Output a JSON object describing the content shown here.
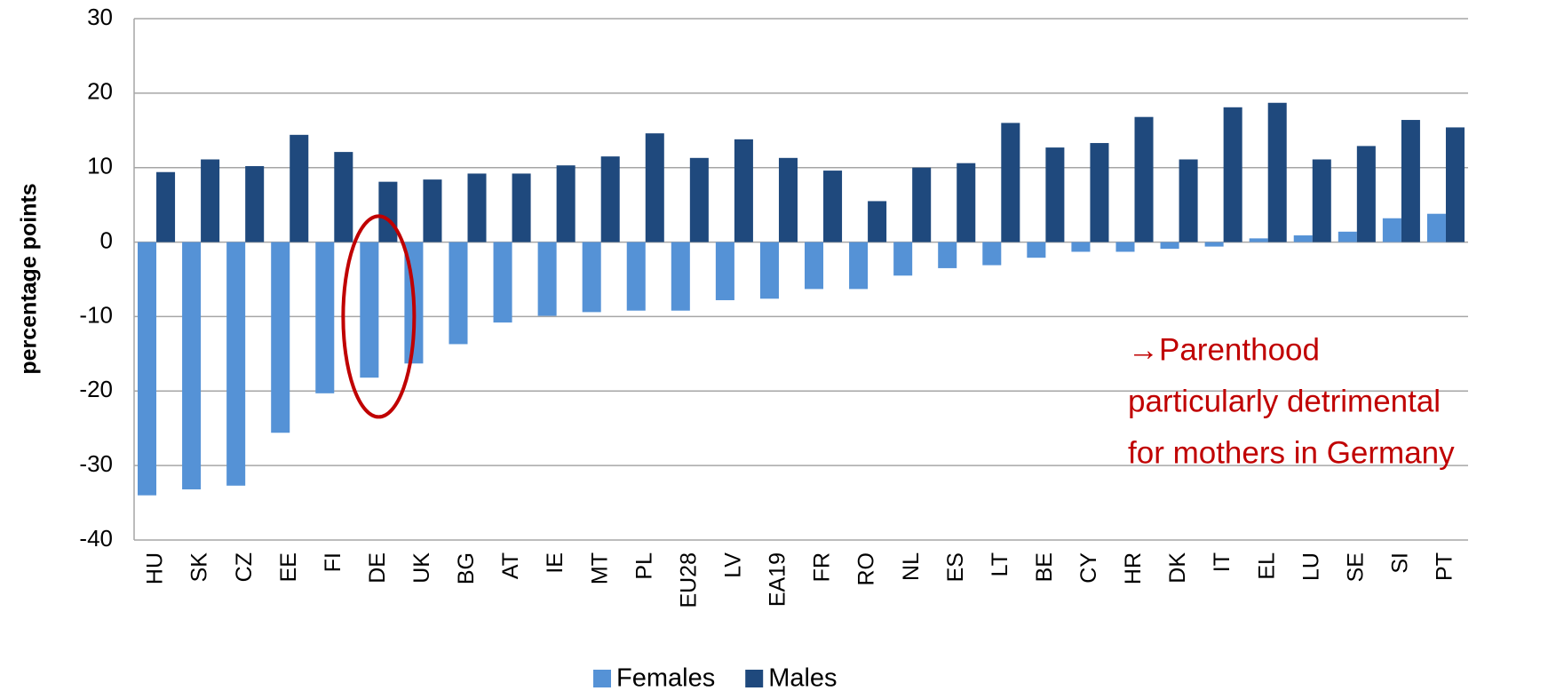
{
  "chart_data": {
    "type": "bar",
    "y_label": "percentage points",
    "categories": [
      "HU",
      "SK",
      "CZ",
      "EE",
      "FI",
      "DE",
      "UK",
      "BG",
      "AT",
      "IE",
      "MT",
      "PL",
      "EU28",
      "LV",
      "EA19",
      "FR",
      "RO",
      "NL",
      "ES",
      "LT",
      "BE",
      "CY",
      "HR",
      "DK",
      "IT",
      "EL",
      "LU",
      "SE",
      "SI",
      "PT"
    ],
    "series": [
      {
        "name": "Females",
        "color": "#5592d6",
        "values": [
          -34,
          -33.2,
          -32.7,
          -25.6,
          -20.3,
          -18.2,
          -16.3,
          -13.7,
          -10.8,
          -9.9,
          -9.4,
          -9.2,
          -9.2,
          -7.8,
          -7.6,
          -6.3,
          -6.3,
          -4.5,
          -3.5,
          -3.1,
          -2.1,
          -1.3,
          -1.3,
          -0.9,
          -0.6,
          0.5,
          0.9,
          1.4,
          3.2,
          3.8
        ]
      },
      {
        "name": "Males",
        "color": "#1f497d",
        "values": [
          9.4,
          11.1,
          10.2,
          14.4,
          12.1,
          8.1,
          8.4,
          9.2,
          9.2,
          10.3,
          11.5,
          14.6,
          11.3,
          13.8,
          11.3,
          9.6,
          5.5,
          10.0,
          10.6,
          16.0,
          12.7,
          13.3,
          16.8,
          11.1,
          18.1,
          18.7,
          11.1,
          12.9,
          16.4,
          15.4
        ]
      }
    ],
    "ylim": [
      -40,
      30
    ],
    "yticks": [
      -40,
      -30,
      -20,
      -10,
      0,
      10,
      20,
      30
    ],
    "grid": true,
    "annotation": [
      "→Parenthood",
      "particularly detrimental",
      "for mothers in Germany"
    ]
  }
}
